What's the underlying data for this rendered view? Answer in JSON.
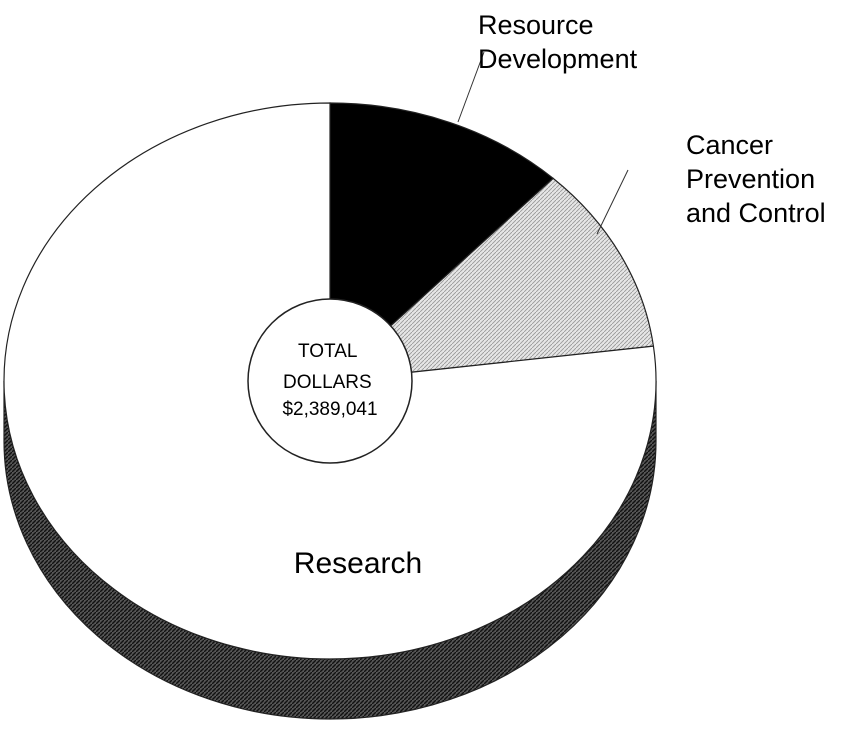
{
  "chart_data": {
    "type": "pie",
    "style": "3d-donut",
    "title": "",
    "center_label": [
      "TOTAL",
      "DOLLARS",
      "$2,389,041"
    ],
    "total": 2389041,
    "slices": [
      {
        "label": [
          "Resource",
          "Development"
        ],
        "percent": 12,
        "fill": "#000000"
      },
      {
        "label": [
          "Cancer",
          "Prevention",
          "and Control"
        ],
        "percent": 11,
        "fill": "#d6d6d6",
        "pattern": "hatch"
      },
      {
        "label": [
          "Research"
        ],
        "percent": 77,
        "fill": "#ffffff"
      }
    ]
  }
}
